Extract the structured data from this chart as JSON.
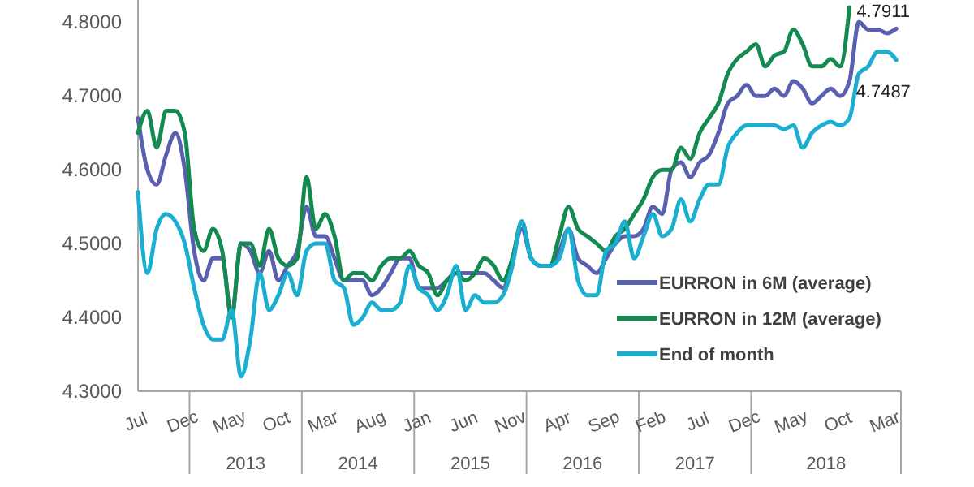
{
  "chart_data": {
    "type": "line",
    "categories": [
      "Jul",
      null,
      null,
      null,
      null,
      "Dec",
      null,
      null,
      null,
      null,
      "May",
      null,
      null,
      null,
      null,
      "Oct",
      null,
      null,
      null,
      null,
      "Mar",
      null,
      null,
      null,
      null,
      "Aug",
      null,
      null,
      null,
      null,
      "Jan",
      null,
      null,
      null,
      null,
      "Jun",
      null,
      null,
      null,
      null,
      "Nov",
      null,
      null,
      null,
      null,
      "Apr",
      null,
      null,
      null,
      null,
      "Sep",
      null,
      null,
      null,
      null,
      "Feb",
      null,
      null,
      null,
      null,
      "Jul",
      null,
      null,
      null,
      null,
      "Dec",
      null,
      null,
      null,
      null,
      "May",
      null,
      null,
      null,
      null,
      "Oct",
      null,
      null,
      null,
      null,
      "Mar",
      null
    ],
    "series": [
      {
        "name": "EURRON in 6M (average)",
        "color": "#5a60b0",
        "values": [
          4.67,
          4.6,
          4.58,
          4.62,
          4.65,
          4.6,
          4.49,
          4.45,
          4.48,
          4.48,
          4.4,
          4.5,
          4.49,
          4.46,
          4.49,
          4.45,
          4.47,
          4.49,
          4.55,
          4.51,
          4.51,
          4.48,
          4.45,
          4.45,
          4.45,
          4.43,
          4.44,
          4.46,
          4.48,
          4.48,
          4.44,
          4.44,
          4.44,
          4.45,
          4.46,
          4.46,
          4.46,
          4.46,
          4.45,
          4.44,
          4.48,
          4.52,
          4.48,
          4.47,
          4.47,
          4.49,
          4.52,
          4.48,
          4.47,
          4.46,
          4.48,
          4.5,
          4.51,
          4.51,
          4.52,
          4.55,
          4.54,
          4.6,
          4.61,
          4.59,
          4.61,
          4.62,
          4.65,
          4.69,
          4.7,
          4.715,
          4.7,
          4.7,
          4.71,
          4.7,
          4.72,
          4.71,
          4.69,
          4.7,
          4.71,
          4.7,
          4.72,
          4.8,
          4.79,
          4.79,
          4.785,
          4.7911
        ],
        "value_labels": [
          null,
          null,
          null,
          null,
          null,
          null,
          null,
          null,
          null,
          null,
          null,
          null,
          null,
          null,
          null,
          null,
          null,
          null,
          null,
          null,
          null,
          null,
          null,
          null,
          null,
          null,
          null,
          null,
          null,
          null,
          null,
          null,
          null,
          null,
          null,
          null,
          null,
          null,
          null,
          null,
          null,
          null,
          null,
          null,
          null,
          null,
          null,
          null,
          null,
          null,
          null,
          null,
          null,
          null,
          null,
          null,
          null,
          null,
          null,
          null,
          null,
          null,
          null,
          null,
          null,
          null,
          null,
          null,
          null,
          null,
          null,
          null,
          null,
          null,
          null,
          null,
          null,
          null,
          null,
          null,
          null,
          "4.7911"
        ]
      },
      {
        "name": "EURRON in 12M (average)",
        "color": "#138a50",
        "values": [
          4.65,
          4.68,
          4.63,
          4.68,
          4.68,
          4.65,
          4.52,
          4.49,
          4.52,
          4.49,
          4.4,
          4.5,
          4.5,
          4.47,
          4.52,
          4.48,
          4.47,
          4.48,
          4.59,
          4.52,
          4.54,
          4.51,
          4.45,
          4.46,
          4.46,
          4.45,
          4.47,
          4.48,
          4.48,
          4.49,
          4.47,
          4.46,
          4.43,
          4.45,
          4.46,
          4.45,
          4.46,
          4.48,
          4.47,
          4.45,
          4.48,
          4.53,
          4.48,
          4.47,
          4.47,
          4.51,
          4.55,
          4.52,
          4.51,
          4.5,
          4.49,
          4.51,
          4.52,
          4.54,
          4.56,
          4.59,
          4.6,
          4.6,
          4.63,
          4.615,
          4.65,
          4.67,
          4.69,
          4.73,
          4.75,
          4.76,
          4.77,
          4.74,
          4.755,
          4.76,
          4.79,
          4.77,
          4.74,
          4.74,
          4.75,
          4.74,
          4.82,
          null,
          null,
          null,
          null,
          null
        ]
      },
      {
        "name": "End of month",
        "color": "#1aaed0",
        "values": [
          4.57,
          4.46,
          4.52,
          4.54,
          4.53,
          4.5,
          4.44,
          4.39,
          4.37,
          4.37,
          4.41,
          4.32,
          4.37,
          4.46,
          4.41,
          4.43,
          4.46,
          4.43,
          4.49,
          4.5,
          4.5,
          4.45,
          4.44,
          4.39,
          4.4,
          4.42,
          4.41,
          4.41,
          4.42,
          4.47,
          4.44,
          4.43,
          4.41,
          4.43,
          4.47,
          4.41,
          4.43,
          4.42,
          4.42,
          4.43,
          4.47,
          4.53,
          4.48,
          4.47,
          4.47,
          4.48,
          4.52,
          4.45,
          4.43,
          4.43,
          4.49,
          4.5,
          4.53,
          4.48,
          4.51,
          4.54,
          4.51,
          4.52,
          4.56,
          4.53,
          4.56,
          4.58,
          4.58,
          4.63,
          4.65,
          4.66,
          4.66,
          4.66,
          4.66,
          4.655,
          4.66,
          4.63,
          4.65,
          4.66,
          4.665,
          4.66,
          4.67,
          4.73,
          4.74,
          4.76,
          4.76,
          4.7487
        ],
        "value_labels": [
          null,
          null,
          null,
          null,
          null,
          null,
          null,
          null,
          null,
          null,
          null,
          null,
          null,
          null,
          null,
          null,
          null,
          null,
          null,
          null,
          null,
          null,
          null,
          null,
          null,
          null,
          null,
          null,
          null,
          null,
          null,
          null,
          null,
          null,
          null,
          null,
          null,
          null,
          null,
          null,
          null,
          null,
          null,
          null,
          null,
          null,
          null,
          null,
          null,
          null,
          null,
          null,
          null,
          null,
          null,
          null,
          null,
          null,
          null,
          null,
          null,
          null,
          null,
          null,
          null,
          null,
          null,
          null,
          null,
          null,
          null,
          null,
          null,
          null,
          null,
          null,
          null,
          null,
          null,
          null,
          null,
          "4.7487"
        ]
      }
    ],
    "ylim": [
      4.3,
      4.83
    ],
    "yticks": [
      {
        "value": 4.3,
        "label": "4.3000"
      },
      {
        "value": 4.4,
        "label": "4.4000"
      },
      {
        "value": 4.5,
        "label": "4.5000"
      },
      {
        "value": 4.6,
        "label": "4.6000"
      },
      {
        "value": 4.7,
        "label": "4.7000"
      },
      {
        "value": 4.8,
        "label": "4.8000"
      }
    ],
    "annotations": [
      "2013",
      "2014",
      "2015",
      "2016",
      "2017",
      "2018"
    ],
    "legend": "bottom right",
    "grid": false
  }
}
